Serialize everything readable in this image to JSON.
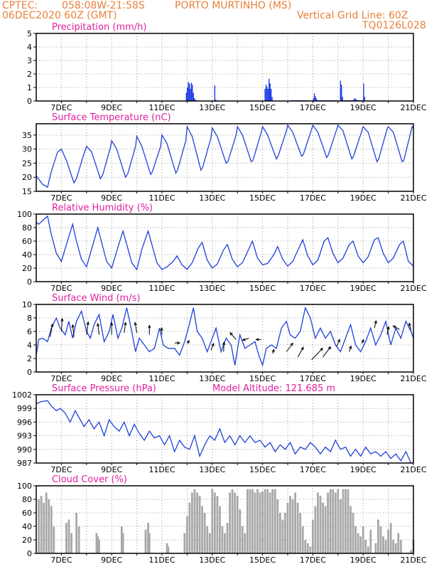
{
  "header": {
    "source": "CPTEC:",
    "coords": "058:08W-21:58S",
    "station": "PORTO MURTINHO (MS)",
    "date": "06DEC2020 60Z (GMT)",
    "grid_note": "Vertical Grid Line: 60Z",
    "code": "TQ0126L028"
  },
  "colors": {
    "header": "#e8823a",
    "title": "#e0209f",
    "line": "#2040d8",
    "bar": "#1e3ce6",
    "cloud": "#a8a8a8",
    "arrow": "#000000"
  },
  "x_tick_labels": [
    "7DEC",
    "9DEC",
    "11DEC",
    "13DEC",
    "15DEC",
    "17DEC",
    "19DEC",
    "21DEC"
  ],
  "chart_data": [
    {
      "type": "bar",
      "title": "Precipitation (mm/h)",
      "xlim": [
        6.0,
        21.0
      ],
      "ylim": [
        0,
        5
      ],
      "yticks": [
        "0",
        "1",
        "2",
        "3",
        "4",
        "5"
      ],
      "x": [
        7.6,
        7.72,
        11.97,
        12.01,
        12.05,
        12.09,
        12.13,
        12.17,
        12.21,
        12.25,
        12.29,
        12.33,
        12.37,
        13.1,
        13.14,
        15.1,
        15.14,
        15.18,
        15.22,
        15.26,
        15.3,
        15.34,
        15.38,
        16.12,
        16.16,
        16.2,
        16.24,
        16.28,
        16.32,
        16.36,
        16.4,
        16.44,
        16.48,
        16.52,
        16.56,
        16.6,
        16.64,
        16.68,
        16.72,
        16.76,
        17.02,
        17.06,
        17.1,
        17.14,
        17.18,
        17.22,
        17.26,
        17.3,
        17.34,
        17.38,
        17.42,
        17.46,
        17.5,
        17.54,
        17.58,
        17.62,
        17.66,
        17.7,
        17.74,
        17.78,
        17.82,
        17.86,
        17.9,
        17.94,
        17.98,
        18.02,
        18.1,
        18.14,
        18.18,
        18.22,
        18.26,
        18.3,
        18.34,
        18.38,
        18.42,
        18.46,
        18.5,
        18.54,
        18.58,
        18.62,
        18.66,
        18.7,
        18.74,
        18.78,
        18.82,
        18.86,
        18.9,
        18.94,
        18.98,
        19.02,
        19.06
      ],
      "values": [
        0.05,
        0.05,
        0.6,
        1.0,
        1.4,
        1.3,
        0.9,
        1.35,
        1.2,
        0.6,
        0.2,
        0.1,
        0.05,
        1.15,
        0.1,
        0.9,
        1.2,
        1.05,
        0.9,
        1.65,
        1.3,
        0.9,
        0.3,
        0.05,
        0.05,
        0.05,
        0.05,
        0.05,
        0.05,
        0.05,
        0.05,
        0.05,
        0.05,
        0.05,
        0.05,
        0.05,
        0.05,
        0.05,
        0.05,
        0.05,
        0.2,
        0.55,
        0.35,
        0.2,
        0.05,
        0.05,
        0.05,
        0.05,
        0.05,
        0.05,
        0.05,
        0.05,
        0.05,
        0.05,
        0.05,
        0.05,
        0.05,
        0.05,
        0.05,
        0.05,
        0.05,
        0.05,
        0.05,
        0.05,
        0.05,
        0.05,
        1.5,
        1.2,
        0.3,
        0.05,
        0.05,
        0.05,
        0.05,
        0.05,
        0.05,
        0.05,
        0.05,
        0.05,
        0.05,
        0.1,
        0.2,
        0.15,
        0.1,
        0.05,
        0.05,
        0.05,
        0.05,
        0.05,
        0.05,
        1.3,
        0.3
      ]
    },
    {
      "type": "line",
      "title": "Surface Temperature (nC)",
      "xlim": [
        6.0,
        21.0
      ],
      "ylim": [
        15,
        39
      ],
      "yticks": [
        "15",
        "20",
        "25",
        "30",
        "35"
      ],
      "x": [
        6.0,
        6.25,
        6.45,
        6.6,
        6.85,
        7.0,
        7.2,
        7.5,
        7.6,
        7.85,
        8.0,
        8.2,
        8.55,
        8.65,
        8.95,
        9.0,
        9.2,
        9.55,
        9.65,
        9.95,
        10.0,
        10.2,
        10.55,
        10.62,
        10.95,
        11.0,
        11.2,
        11.55,
        11.62,
        11.95,
        12.0,
        12.2,
        12.55,
        12.62,
        12.95,
        13.0,
        13.2,
        13.55,
        13.62,
        13.95,
        14.0,
        14.2,
        14.55,
        14.62,
        14.95,
        15.0,
        15.2,
        15.55,
        15.62,
        15.95,
        16.0,
        16.2,
        16.55,
        16.62,
        16.95,
        17.0,
        17.2,
        17.55,
        17.62,
        17.95,
        18.0,
        18.2,
        18.55,
        18.62,
        18.95,
        19.0,
        19.2,
        19.55,
        19.62,
        19.95,
        20.0,
        20.2,
        20.55,
        20.62,
        20.95,
        21.0
      ],
      "values": [
        20.5,
        17.5,
        16.5,
        22.0,
        29.0,
        30.0,
        26.0,
        18.0,
        19.5,
        27.0,
        31.0,
        29.0,
        19.5,
        21.0,
        30.5,
        33.0,
        30.0,
        20.0,
        21.5,
        31.0,
        34.5,
        31.0,
        21.0,
        22.0,
        31.0,
        35.0,
        32.0,
        21.5,
        22.5,
        33.0,
        38.0,
        34.5,
        22.5,
        23.5,
        34.0,
        37.5,
        34.5,
        25.0,
        25.5,
        35.0,
        38.0,
        35.0,
        25.5,
        26.0,
        36.0,
        38.0,
        35.0,
        26.5,
        27.5,
        36.5,
        38.5,
        36.0,
        27.5,
        28.0,
        37.0,
        38.5,
        36.0,
        27.0,
        28.0,
        37.0,
        38.5,
        36.5,
        26.5,
        27.5,
        36.5,
        38.0,
        36.0,
        25.5,
        26.5,
        37.0,
        38.0,
        36.0,
        25.5,
        26.0,
        38.0,
        37.5
      ]
    },
    {
      "type": "line",
      "title": "Relative Humidity (%)",
      "xlim": [
        6.0,
        21.0
      ],
      "ylim": [
        0,
        100
      ],
      "yticks": [
        "0",
        "20",
        "40",
        "60",
        "80",
        "100"
      ],
      "x": [
        6.0,
        6.1,
        6.3,
        6.45,
        6.6,
        6.8,
        7.0,
        7.2,
        7.45,
        7.6,
        7.8,
        8.0,
        8.2,
        8.45,
        8.6,
        8.8,
        9.0,
        9.2,
        9.45,
        9.6,
        9.8,
        10.0,
        10.2,
        10.45,
        10.6,
        10.8,
        11.0,
        11.2,
        11.45,
        11.6,
        11.8,
        12.0,
        12.2,
        12.45,
        12.6,
        12.8,
        13.0,
        13.2,
        13.45,
        13.6,
        13.8,
        14.0,
        14.2,
        14.45,
        14.6,
        14.8,
        15.0,
        15.2,
        15.45,
        15.6,
        15.8,
        16.0,
        16.2,
        16.45,
        16.6,
        16.8,
        17.0,
        17.2,
        17.45,
        17.6,
        17.8,
        18.0,
        18.2,
        18.45,
        18.6,
        18.8,
        19.0,
        19.2,
        19.45,
        19.6,
        19.8,
        20.0,
        20.2,
        20.45,
        20.6,
        20.8,
        21.0
      ],
      "values": [
        88,
        85,
        92,
        97,
        70,
        42,
        30,
        55,
        85,
        60,
        33,
        22,
        48,
        80,
        58,
        30,
        20,
        45,
        75,
        55,
        28,
        18,
        48,
        75,
        55,
        28,
        18,
        22,
        30,
        38,
        25,
        18,
        28,
        50,
        58,
        32,
        20,
        26,
        47,
        55,
        33,
        22,
        28,
        48,
        60,
        35,
        25,
        27,
        40,
        52,
        33,
        23,
        30,
        50,
        62,
        38,
        25,
        32,
        60,
        65,
        42,
        28,
        35,
        55,
        60,
        38,
        28,
        37,
        62,
        65,
        42,
        28,
        35,
        55,
        60,
        30,
        23
      ]
    },
    {
      "type": "line",
      "title": "Surface Wind (m/s)",
      "xlim": [
        6.0,
        21.0
      ],
      "ylim": [
        0,
        10
      ],
      "yticks": [
        "0",
        "2",
        "4",
        "6",
        "8",
        "10"
      ],
      "x": [
        6.0,
        6.1,
        6.25,
        6.45,
        6.6,
        6.8,
        6.95,
        7.15,
        7.3,
        7.45,
        7.6,
        7.8,
        8.0,
        8.15,
        8.3,
        8.5,
        8.7,
        8.9,
        9.05,
        9.25,
        9.4,
        9.6,
        9.8,
        9.95,
        10.1,
        10.3,
        10.5,
        10.7,
        10.9,
        11.05,
        11.25,
        11.5,
        11.7,
        11.9,
        12.05,
        12.25,
        12.4,
        12.6,
        12.8,
        12.95,
        13.15,
        13.35,
        13.55,
        13.75,
        13.9,
        14.1,
        14.3,
        14.5,
        14.7,
        14.85,
        15.0,
        15.15,
        15.35,
        15.55,
        15.75,
        15.95,
        16.1,
        16.3,
        16.5,
        16.7,
        16.9,
        17.1,
        17.3,
        17.5,
        17.7,
        17.9,
        18.1,
        18.3,
        18.5,
        18.7,
        18.9,
        19.1,
        19.3,
        19.5,
        19.7,
        19.9,
        20.1,
        20.3,
        20.5,
        20.7,
        20.9,
        21.0
      ],
      "values": [
        2.5,
        4.8,
        5.0,
        4.5,
        6.5,
        8.0,
        6.5,
        5.5,
        7.5,
        5.0,
        7.5,
        9.0,
        6.0,
        5.0,
        7.0,
        8.5,
        4.5,
        6.0,
        8.5,
        5.0,
        6.5,
        9.5,
        6.0,
        3.0,
        5.0,
        4.0,
        3.0,
        3.5,
        6.5,
        4.0,
        3.5,
        3.5,
        2.5,
        4.5,
        6.5,
        9.5,
        6.0,
        5.0,
        3.0,
        4.5,
        6.5,
        3.0,
        5.0,
        4.0,
        1.0,
        5.5,
        3.5,
        4.0,
        4.5,
        2.5,
        1.0,
        3.5,
        4.0,
        3.5,
        6.5,
        7.5,
        5.5,
        5.0,
        6.0,
        9.5,
        8.0,
        5.0,
        6.5,
        5.0,
        6.0,
        4.0,
        3.0,
        5.0,
        7.0,
        4.0,
        3.0,
        4.5,
        6.5,
        4.0,
        5.5,
        7.5,
        4.0,
        6.5,
        5.0,
        7.5,
        6.0,
        5.0
      ],
      "arrows": [
        {
          "x": 6.55,
          "y": 5.2,
          "u": 0.6,
          "v": 3.0
        },
        {
          "x": 7.0,
          "y": 6.0,
          "u": 0.2,
          "v": 3.0
        },
        {
          "x": 7.5,
          "y": 5.2,
          "u": -0.3,
          "v": 2.8
        },
        {
          "x": 8.0,
          "y": 5.5,
          "u": 0.4,
          "v": 3.0
        },
        {
          "x": 8.5,
          "y": 5.5,
          "u": -0.3,
          "v": 2.6
        },
        {
          "x": 9.0,
          "y": 5.5,
          "u": 0.0,
          "v": 2.8
        },
        {
          "x": 9.5,
          "y": 5.8,
          "u": 0.3,
          "v": 2.4
        },
        {
          "x": 10.0,
          "y": 5.8,
          "u": -0.4,
          "v": 2.4
        },
        {
          "x": 10.5,
          "y": 5.5,
          "u": 0.0,
          "v": 2.2
        },
        {
          "x": 11.0,
          "y": 5.5,
          "u": -0.1,
          "v": 1.6
        },
        {
          "x": 11.5,
          "y": 4.3,
          "u": 1.2,
          "v": 0.0
        },
        {
          "x": 12.0,
          "y": 4.2,
          "u": 0.5,
          "v": 0.7
        },
        {
          "x": 12.95,
          "y": 3.2,
          "u": 0.6,
          "v": 1.6
        },
        {
          "x": 13.45,
          "y": 3.0,
          "u": 0.1,
          "v": 2.2
        },
        {
          "x": 13.95,
          "y": 4.8,
          "u": -1.4,
          "v": 1.6
        },
        {
          "x": 14.45,
          "y": 5.0,
          "u": -1.4,
          "v": -0.5
        },
        {
          "x": 14.95,
          "y": 4.8,
          "u": -1.2,
          "v": 0.0
        },
        {
          "x": 15.4,
          "y": 2.7,
          "u": 0.3,
          "v": 1.0
        },
        {
          "x": 15.95,
          "y": 3.0,
          "u": 1.5,
          "v": 2.0
        },
        {
          "x": 16.4,
          "y": 2.2,
          "u": 1.3,
          "v": 2.3
        },
        {
          "x": 16.95,
          "y": 1.8,
          "u": 2.6,
          "v": 2.7
        },
        {
          "x": 17.4,
          "y": 2.2,
          "u": 1.8,
          "v": 2.4
        },
        {
          "x": 17.95,
          "y": 3.8,
          "u": 0.7,
          "v": 1.6
        },
        {
          "x": 18.45,
          "y": 3.0,
          "u": 0.4,
          "v": 1.3
        },
        {
          "x": 18.95,
          "y": 4.2,
          "u": 0.4,
          "v": 0.9
        },
        {
          "x": 19.45,
          "y": 6.5,
          "u": 0.4,
          "v": 1.7
        },
        {
          "x": 19.95,
          "y": 5.5,
          "u": 0.4,
          "v": 1.9
        },
        {
          "x": 20.45,
          "y": 6.3,
          "u": -1.5,
          "v": 0.8
        },
        {
          "x": 20.9,
          "y": 6.2,
          "u": -0.4,
          "v": 1.6
        }
      ]
    },
    {
      "type": "line",
      "title": "Surface Pressure (hPa)",
      "annotation": "Model Altitude: 121.685 m",
      "xlim": [
        6.0,
        21.0
      ],
      "ylim": [
        987,
        1002
      ],
      "yticks": [
        "987",
        "990",
        "993",
        "996",
        "999",
        "1002"
      ],
      "x": [
        6.0,
        6.2,
        6.45,
        6.6,
        6.8,
        6.95,
        7.15,
        7.35,
        7.55,
        7.7,
        7.9,
        8.1,
        8.3,
        8.5,
        8.7,
        8.9,
        9.1,
        9.3,
        9.5,
        9.7,
        9.9,
        10.1,
        10.3,
        10.5,
        10.7,
        10.9,
        11.1,
        11.3,
        11.5,
        11.7,
        11.9,
        12.1,
        12.3,
        12.5,
        12.7,
        12.9,
        13.1,
        13.3,
        13.5,
        13.7,
        13.9,
        14.1,
        14.3,
        14.5,
        14.7,
        14.9,
        15.1,
        15.3,
        15.5,
        15.7,
        15.9,
        16.1,
        16.3,
        16.5,
        16.7,
        16.9,
        17.1,
        17.3,
        17.5,
        17.7,
        17.9,
        18.1,
        18.3,
        18.5,
        18.7,
        18.9,
        19.1,
        19.3,
        19.5,
        19.7,
        19.9,
        20.1,
        20.3,
        20.5,
        20.7,
        20.9,
        21.0
      ],
      "values": [
        1000.0,
        1000.5,
        1000.7,
        999.5,
        998.5,
        999.0,
        998.0,
        996.0,
        998.5,
        997.0,
        995.0,
        996.5,
        994.5,
        996.0,
        993.0,
        996.5,
        995.0,
        994.0,
        996.0,
        993.0,
        995.5,
        993.5,
        992.0,
        994.0,
        992.5,
        993.0,
        991.0,
        993.0,
        989.5,
        992.0,
        990.5,
        990.0,
        993.0,
        988.5,
        991.0,
        993.0,
        992.0,
        994.5,
        991.5,
        993.0,
        991.0,
        993.0,
        991.5,
        993.0,
        991.5,
        992.0,
        990.5,
        991.5,
        989.5,
        991.0,
        990.0,
        991.5,
        989.0,
        990.5,
        990.0,
        991.5,
        990.5,
        989.0,
        990.5,
        989.5,
        992.0,
        990.0,
        990.5,
        988.5,
        990.0,
        988.5,
        990.5,
        989.0,
        989.5,
        988.5,
        989.5,
        988.0,
        989.0,
        987.5,
        989.5,
        987.0,
        987.0
      ]
    },
    {
      "type": "bar",
      "title": "Cloud Cover (%)",
      "xlim": [
        6.0,
        21.0
      ],
      "ylim": [
        0,
        100
      ],
      "yticks": [
        "0",
        "20",
        "40",
        "60",
        "80",
        "100"
      ],
      "x": [
        6.1,
        6.2,
        6.3,
        6.4,
        6.5,
        6.6,
        6.7,
        7.2,
        7.3,
        7.4,
        7.6,
        7.7,
        8.4,
        8.45,
        8.5,
        9.4,
        9.45,
        10.35,
        10.45,
        10.5,
        11.2,
        11.25,
        11.9,
        12.0,
        12.1,
        12.2,
        12.3,
        12.4,
        12.5,
        12.6,
        12.7,
        12.8,
        12.9,
        13.0,
        13.1,
        13.2,
        13.3,
        13.4,
        13.5,
        13.6,
        13.7,
        13.8,
        13.9,
        14.0,
        14.1,
        14.2,
        14.3,
        14.4,
        14.5,
        14.6,
        14.7,
        14.8,
        14.9,
        15.0,
        15.1,
        15.2,
        15.3,
        15.4,
        15.5,
        15.6,
        15.7,
        15.8,
        15.9,
        16.0,
        16.1,
        16.2,
        16.3,
        16.4,
        16.5,
        16.6,
        16.7,
        16.8,
        16.9,
        17.0,
        17.1,
        17.2,
        17.3,
        17.4,
        17.5,
        17.6,
        17.7,
        17.8,
        17.9,
        18.0,
        18.1,
        18.2,
        18.3,
        18.4,
        18.5,
        18.6,
        18.7,
        18.8,
        18.9,
        19.0,
        19.1,
        19.2,
        19.3,
        19.5,
        19.6,
        19.7,
        19.8,
        19.9,
        20.0,
        20.1,
        20.2,
        20.3,
        20.4,
        20.5,
        20.9,
        21.0
      ],
      "values": [
        80,
        85,
        75,
        90,
        80,
        70,
        40,
        45,
        50,
        30,
        60,
        40,
        30,
        25,
        20,
        40,
        30,
        35,
        45,
        30,
        15,
        10,
        30,
        55,
        75,
        90,
        95,
        90,
        85,
        70,
        60,
        40,
        30,
        95,
        90,
        85,
        70,
        40,
        30,
        45,
        90,
        95,
        90,
        85,
        65,
        40,
        30,
        95,
        95,
        95,
        90,
        95,
        90,
        92,
        95,
        95,
        90,
        95,
        95,
        80,
        60,
        50,
        60,
        75,
        85,
        80,
        90,
        75,
        60,
        40,
        20,
        15,
        10,
        50,
        70,
        90,
        85,
        75,
        70,
        90,
        95,
        95,
        90,
        95,
        80,
        95,
        95,
        95,
        70,
        60,
        40,
        30,
        25,
        40,
        20,
        10,
        35,
        15,
        50,
        40,
        25,
        20,
        35,
        45,
        20,
        15,
        30,
        20,
        5,
        20
      ]
    }
  ]
}
